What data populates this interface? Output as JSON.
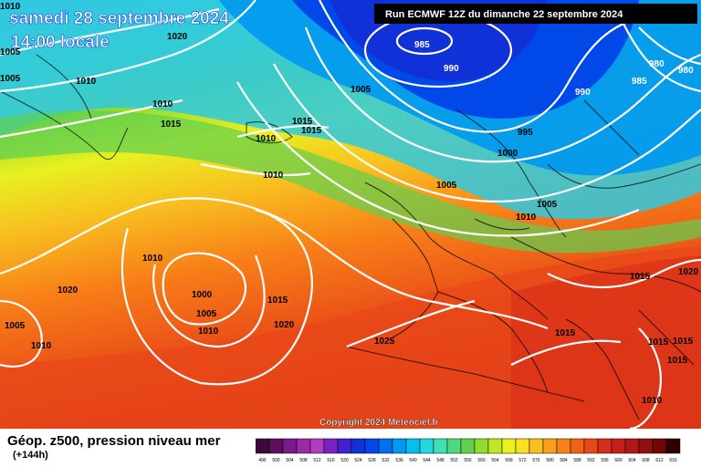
{
  "header": {
    "valid_date": "samedi 28 septembre 2024",
    "valid_time": "14:00 locale",
    "run_info": "Run ECMWF 12Z du dimanche 22 septembre 2024"
  },
  "copyright": "Copyright 2024 Meteociel.fr",
  "footer": {
    "title": "Géop. z500, pression niveau mer",
    "lead": "(+144h)"
  },
  "isobars": [
    {
      "label": "1010",
      "id": "a"
    },
    {
      "label": "1005",
      "id": "b"
    },
    {
      "label": "1005",
      "id": "c"
    },
    {
      "label": "1020",
      "id": "d"
    },
    {
      "label": "1010",
      "id": "e"
    },
    {
      "label": "1010",
      "id": "f"
    },
    {
      "label": "1015",
      "id": "g"
    },
    {
      "label": "1010",
      "id": "h"
    },
    {
      "label": "1015",
      "id": "i"
    },
    {
      "label": "1015",
      "id": "j"
    },
    {
      "label": "1010",
      "id": "k"
    },
    {
      "label": "1005",
      "id": "l"
    },
    {
      "label": "985",
      "id": "m"
    },
    {
      "label": "990",
      "id": "n"
    },
    {
      "label": "980",
      "id": "o"
    },
    {
      "label": "980",
      "id": "p"
    },
    {
      "label": "985",
      "id": "q"
    },
    {
      "label": "990",
      "id": "r"
    },
    {
      "label": "995",
      "id": "s"
    },
    {
      "label": "1000",
      "id": "t"
    },
    {
      "label": "1005",
      "id": "u"
    },
    {
      "label": "1005",
      "id": "v"
    },
    {
      "label": "1010",
      "id": "w"
    },
    {
      "label": "1010",
      "id": "x"
    },
    {
      "label": "1015",
      "id": "y"
    },
    {
      "label": "1020",
      "id": "z"
    },
    {
      "label": "1020",
      "id": "aa"
    },
    {
      "label": "1000",
      "id": "ab"
    },
    {
      "label": "1005",
      "id": "ac"
    },
    {
      "label": "1010",
      "id": "ad"
    },
    {
      "label": "1015",
      "id": "ae"
    },
    {
      "label": "1020",
      "id": "af"
    },
    {
      "label": "1005",
      "id": "ag"
    },
    {
      "label": "1010",
      "id": "ah"
    },
    {
      "label": "1025",
      "id": "ai"
    },
    {
      "label": "1015",
      "id": "aj"
    },
    {
      "label": "1015",
      "id": "ak"
    },
    {
      "label": "1015",
      "id": "al"
    },
    {
      "label": "1015",
      "id": "am"
    },
    {
      "label": "1010",
      "id": "an"
    }
  ],
  "scale": {
    "labels": [
      "496",
      "500",
      "504",
      "508",
      "512",
      "516",
      "520",
      "524",
      "528",
      "532",
      "536",
      "540",
      "544",
      "548",
      "552",
      "556",
      "560",
      "564",
      "568",
      "572",
      "576",
      "580",
      "584",
      "588",
      "592",
      "596",
      "600",
      "604",
      "608",
      "612",
      "616"
    ],
    "colors": [
      "#3a0a3a",
      "#5a1060",
      "#7a1a8a",
      "#9a2aa8",
      "#b03cc0",
      "#7a20c8",
      "#4020d0",
      "#1030d8",
      "#0048e8",
      "#0070f0",
      "#0098f0",
      "#00c0f0",
      "#20d8e0",
      "#40e0b0",
      "#50d880",
      "#60d050",
      "#90dc30",
      "#c0e820",
      "#e8f020",
      "#f8e020",
      "#f8c020",
      "#f8a018",
      "#f88018",
      "#f06018",
      "#e84818",
      "#d83018",
      "#c82018",
      "#b01818",
      "#901010",
      "#700808",
      "#300000"
    ]
  }
}
